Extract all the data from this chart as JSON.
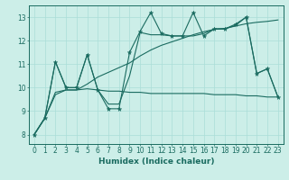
{
  "xlabel": "Humidex (Indice chaleur)",
  "bg_color": "#cceee8",
  "line_color": "#1a6b60",
  "grid_color": "#aaddd8",
  "xlim_min": -0.5,
  "xlim_max": 23.5,
  "ylim_min": 7.6,
  "ylim_max": 13.5,
  "xticks": [
    0,
    1,
    2,
    3,
    4,
    5,
    6,
    7,
    8,
    9,
    10,
    11,
    12,
    13,
    14,
    15,
    16,
    17,
    18,
    19,
    20,
    21,
    22,
    23
  ],
  "yticks": [
    8,
    9,
    10,
    11,
    12,
    13
  ],
  "line1_x": [
    0,
    1,
    2,
    3,
    4,
    5,
    6,
    7,
    8,
    9,
    10,
    11,
    12,
    13,
    14,
    15,
    16,
    17,
    18,
    19,
    20,
    21,
    22,
    23
  ],
  "line1_y": [
    8.0,
    8.7,
    11.1,
    10.0,
    10.0,
    11.4,
    9.9,
    9.1,
    9.1,
    11.5,
    12.4,
    13.2,
    12.3,
    12.2,
    12.2,
    13.2,
    12.2,
    12.5,
    12.5,
    12.7,
    13.0,
    10.6,
    10.8,
    9.6
  ],
  "line2_x": [
    0,
    1,
    2,
    3,
    4,
    5,
    6,
    7,
    8,
    9,
    10,
    11,
    12,
    13,
    14,
    15,
    16,
    17,
    18,
    19,
    20,
    21,
    22,
    23
  ],
  "line2_y": [
    8.0,
    8.7,
    11.1,
    10.0,
    10.0,
    11.4,
    9.9,
    9.3,
    9.3,
    10.5,
    12.35,
    12.25,
    12.25,
    12.2,
    12.2,
    12.2,
    12.3,
    12.5,
    12.5,
    12.65,
    13.0,
    10.6,
    10.8,
    9.6
  ],
  "line3_x": [
    0,
    1,
    2,
    3,
    4,
    5,
    6,
    7,
    8,
    9,
    10,
    11,
    12,
    13,
    14,
    15,
    16,
    17,
    18,
    19,
    20,
    21,
    22,
    23
  ],
  "line3_y": [
    8.0,
    8.7,
    9.8,
    9.9,
    9.9,
    9.95,
    9.9,
    9.85,
    9.85,
    9.8,
    9.8,
    9.75,
    9.75,
    9.75,
    9.75,
    9.75,
    9.75,
    9.7,
    9.7,
    9.7,
    9.65,
    9.65,
    9.6,
    9.6
  ],
  "line4_x": [
    0,
    1,
    2,
    3,
    4,
    5,
    6,
    7,
    8,
    9,
    10,
    11,
    12,
    13,
    14,
    15,
    16,
    17,
    18,
    19,
    20,
    21,
    22,
    23
  ],
  "line4_y": [
    8.0,
    8.7,
    9.7,
    9.9,
    9.9,
    10.15,
    10.45,
    10.65,
    10.85,
    11.05,
    11.35,
    11.6,
    11.8,
    11.95,
    12.1,
    12.25,
    12.38,
    12.48,
    12.52,
    12.62,
    12.72,
    12.78,
    12.82,
    12.88
  ]
}
